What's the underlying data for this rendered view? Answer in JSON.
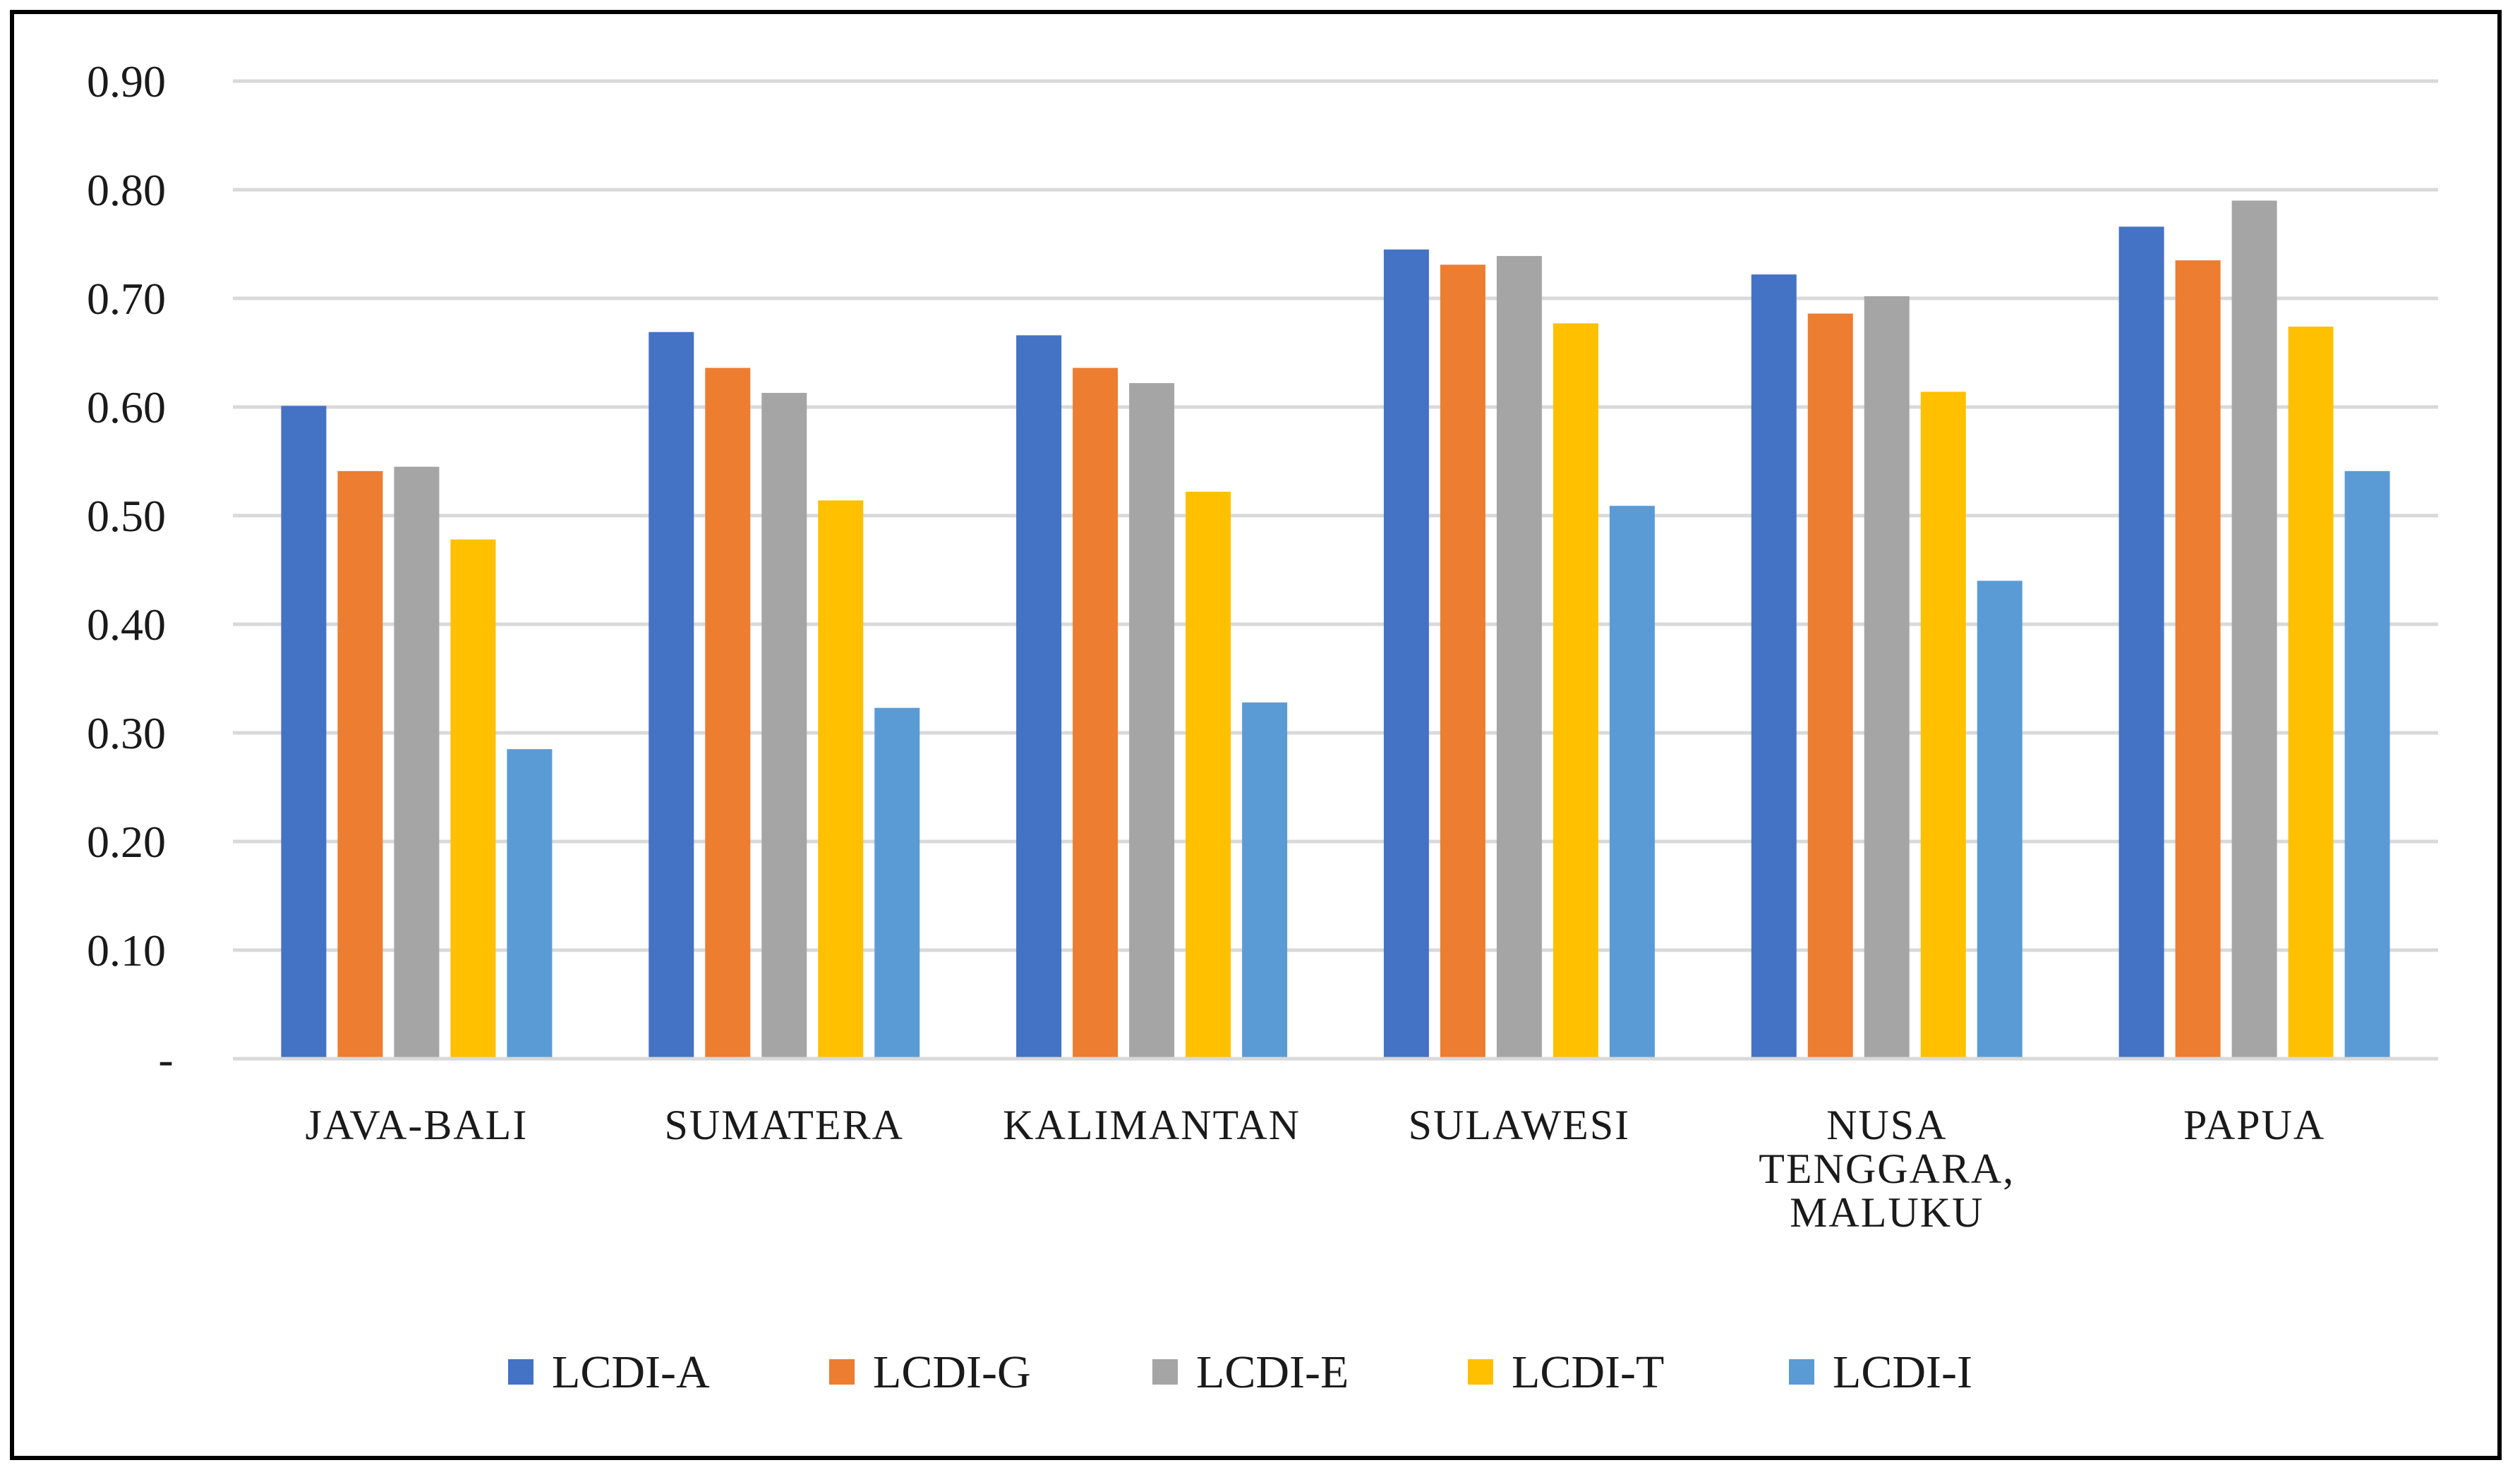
{
  "chart_data": {
    "type": "bar",
    "title": "",
    "xlabel": "",
    "ylabel": "",
    "ylim": [
      0,
      0.9
    ],
    "yticks": [
      {
        "value": 0,
        "label": "-"
      },
      {
        "value": 0.1,
        "label": "0.10"
      },
      {
        "value": 0.2,
        "label": "0.20"
      },
      {
        "value": 0.3,
        "label": "0.30"
      },
      {
        "value": 0.4,
        "label": "0.40"
      },
      {
        "value": 0.5,
        "label": "0.50"
      },
      {
        "value": 0.6,
        "label": "0.60"
      },
      {
        "value": 0.7,
        "label": "0.70"
      },
      {
        "value": 0.8,
        "label": "0.80"
      },
      {
        "value": 0.9,
        "label": "0.90"
      }
    ],
    "grid": true,
    "legend_position": "bottom",
    "categories": [
      [
        "JAVA-BALI"
      ],
      [
        "SUMATERA"
      ],
      [
        "KALIMANTAN"
      ],
      [
        "SULAWESI"
      ],
      [
        "NUSA",
        "TENGGARA,",
        "MALUKU"
      ],
      [
        "PAPUA"
      ]
    ],
    "series": [
      {
        "name": "LCDI-A",
        "color": "#4472C4",
        "values": [
          0.601,
          0.669,
          0.666,
          0.745,
          0.722,
          0.766
        ]
      },
      {
        "name": "LCDI-G",
        "color": "#ED7D31",
        "values": [
          0.541,
          0.636,
          0.636,
          0.731,
          0.686,
          0.735
        ]
      },
      {
        "name": "LCDI-E",
        "color": "#A5A5A5",
        "values": [
          0.545,
          0.613,
          0.622,
          0.739,
          0.702,
          0.79
        ]
      },
      {
        "name": "LCDI-T",
        "color": "#FFC000",
        "values": [
          0.478,
          0.514,
          0.522,
          0.677,
          0.614,
          0.674
        ]
      },
      {
        "name": "LCDI-I",
        "color": "#5B9BD5",
        "values": [
          0.285,
          0.323,
          0.328,
          0.509,
          0.44,
          0.541
        ]
      }
    ]
  }
}
